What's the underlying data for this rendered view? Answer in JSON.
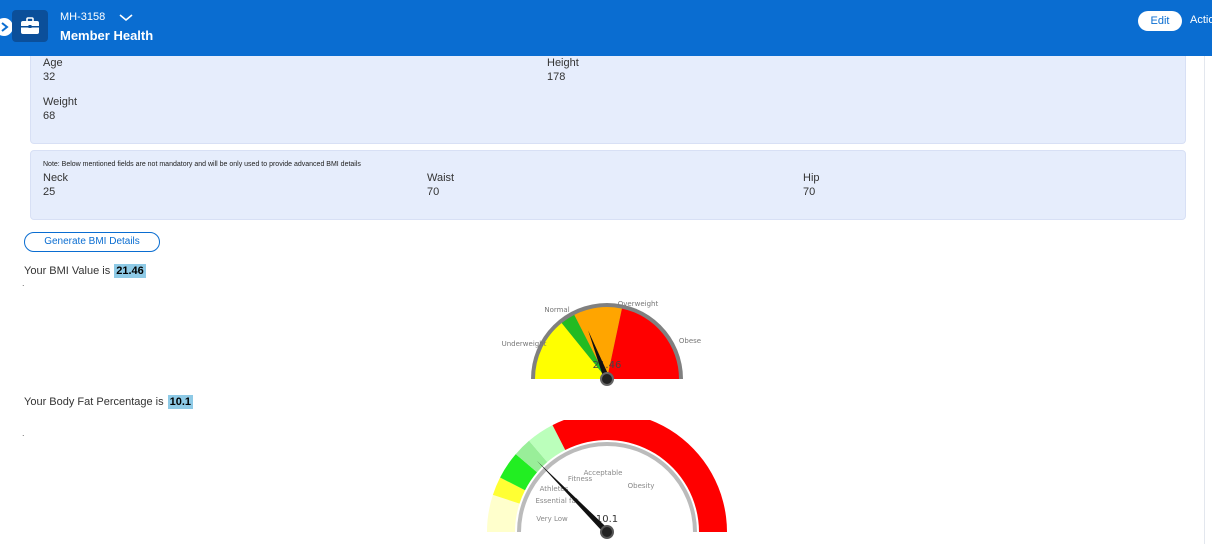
{
  "header": {
    "record_id": "MH-3158",
    "module_title": "Member Health",
    "edit_label": "Edit",
    "actions_label": "Actions",
    "brand_color": "#0a6dd1"
  },
  "measurements": {
    "age_label": "Age",
    "age_value": "32",
    "height_label": "Height",
    "height_value": "178",
    "weight_label": "Weight",
    "weight_value": "68"
  },
  "advanced": {
    "note": "Note: Below mentioned fields are not mandatory and will be only used to provide advanced BMI details",
    "neck_label": "Neck",
    "neck_value": "25",
    "waist_label": "Waist",
    "waist_value": "70",
    "hip_label": "Hip",
    "hip_value": "70"
  },
  "generate_label": "Generate BMI Details",
  "bmi": {
    "prefix": "Your BMI Value is",
    "value": "21.46",
    "dot": ".",
    "gauge": {
      "value": 21.46,
      "min": 10,
      "max": 40,
      "bands": [
        {
          "label": "Underweight",
          "from": 10,
          "to": 18.5,
          "color": "#ffff00"
        },
        {
          "label": "Normal",
          "from": 18.5,
          "to": 20.5,
          "color": "#22bb22"
        },
        {
          "label": "Overweight",
          "from": 20.5,
          "to": 27,
          "color": "#ffa500"
        },
        {
          "label": "Obese",
          "from": 27,
          "to": 40,
          "color": "#ff0000"
        }
      ]
    }
  },
  "body_fat": {
    "prefix": "Your Body Fat Percentage is",
    "value": "10.1",
    "dot": ".",
    "gauge": {
      "value": 10.1,
      "min": 0,
      "max": 40,
      "bands": [
        {
          "label": "Very Low",
          "from": 0,
          "to": 4,
          "color": "#ffffcc"
        },
        {
          "label": "Essential fat",
          "from": 4,
          "to": 6,
          "color": "#ffff33"
        },
        {
          "label": "Athletes",
          "from": 6,
          "to": 9,
          "color": "#22ee22"
        },
        {
          "label": "Fitness",
          "from": 9,
          "to": 11,
          "color": "#99ee99"
        },
        {
          "label": "Acceptable",
          "from": 11,
          "to": 14,
          "color": "#bbffbb"
        },
        {
          "label": "Obesity",
          "from": 14,
          "to": 40,
          "color": "#ff0000"
        }
      ]
    }
  }
}
